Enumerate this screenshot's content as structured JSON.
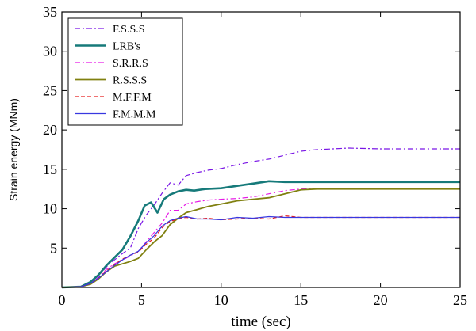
{
  "chart_data": {
    "type": "line",
    "title": "",
    "xlabel": "time (sec)",
    "ylabel": "Strain energy (MNm)",
    "xlim": [
      0,
      25
    ],
    "ylim": [
      0,
      35
    ],
    "xticks": [
      0,
      5,
      10,
      15,
      20,
      25
    ],
    "yticks": [
      5,
      10,
      15,
      20,
      25,
      30,
      35
    ],
    "grid": false,
    "legend_position": "top-left",
    "series": [
      {
        "name": "F.S.S.S",
        "color": "#7a16e6",
        "style": "dashdot",
        "width": 1.2,
        "points": [
          [
            0,
            0
          ],
          [
            1.2,
            0.1
          ],
          [
            1.8,
            0.6
          ],
          [
            2.3,
            1.5
          ],
          [
            2.8,
            2.6
          ],
          [
            3.3,
            3.5
          ],
          [
            3.8,
            4.3
          ],
          [
            4.3,
            5.0
          ],
          [
            4.8,
            7.5
          ],
          [
            5.3,
            9.2
          ],
          [
            5.8,
            10.5
          ],
          [
            6.3,
            12.0
          ],
          [
            6.8,
            13.3
          ],
          [
            7.3,
            13.0
          ],
          [
            7.8,
            14.2
          ],
          [
            8.5,
            14.6
          ],
          [
            9.2,
            14.9
          ],
          [
            10,
            15.1
          ],
          [
            11,
            15.6
          ],
          [
            12,
            16.0
          ],
          [
            13,
            16.3
          ],
          [
            14,
            16.8
          ],
          [
            15,
            17.3
          ],
          [
            16,
            17.5
          ],
          [
            17,
            17.6
          ],
          [
            18,
            17.7
          ],
          [
            20,
            17.6
          ],
          [
            22,
            17.6
          ],
          [
            25,
            17.6
          ]
        ]
      },
      {
        "name": "LRB's",
        "color": "#167a7a",
        "style": "solid",
        "width": 2.6,
        "points": [
          [
            0,
            0
          ],
          [
            1.2,
            0.1
          ],
          [
            1.8,
            0.7
          ],
          [
            2.3,
            1.6
          ],
          [
            2.8,
            2.8
          ],
          [
            3.3,
            3.8
          ],
          [
            3.8,
            4.8
          ],
          [
            4.3,
            6.5
          ],
          [
            4.8,
            8.5
          ],
          [
            5.2,
            10.4
          ],
          [
            5.6,
            10.8
          ],
          [
            6.0,
            9.5
          ],
          [
            6.4,
            11.2
          ],
          [
            6.8,
            11.8
          ],
          [
            7.3,
            12.2
          ],
          [
            7.8,
            12.4
          ],
          [
            8.3,
            12.3
          ],
          [
            9,
            12.5
          ],
          [
            10,
            12.6
          ],
          [
            11,
            12.9
          ],
          [
            12,
            13.2
          ],
          [
            13,
            13.5
          ],
          [
            14,
            13.4
          ],
          [
            15,
            13.4
          ],
          [
            17,
            13.4
          ],
          [
            20,
            13.4
          ],
          [
            25,
            13.4
          ]
        ]
      },
      {
        "name": "S.R.R.S",
        "color": "#e619e6",
        "style": "dashdot",
        "width": 1.2,
        "points": [
          [
            0,
            0
          ],
          [
            1.2,
            0.1
          ],
          [
            1.8,
            0.5
          ],
          [
            2.3,
            1.3
          ],
          [
            2.8,
            2.3
          ],
          [
            3.3,
            3.0
          ],
          [
            3.8,
            3.5
          ],
          [
            4.3,
            4.0
          ],
          [
            4.8,
            4.6
          ],
          [
            5.3,
            5.8
          ],
          [
            5.8,
            7.0
          ],
          [
            6.3,
            8.2
          ],
          [
            6.8,
            9.8
          ],
          [
            7.3,
            9.8
          ],
          [
            7.8,
            10.6
          ],
          [
            8.5,
            10.9
          ],
          [
            9.2,
            11.1
          ],
          [
            10,
            11.2
          ],
          [
            11,
            11.3
          ],
          [
            12,
            11.5
          ],
          [
            13,
            11.9
          ],
          [
            14,
            12.3
          ],
          [
            15,
            12.5
          ],
          [
            17,
            12.6
          ],
          [
            20,
            12.6
          ],
          [
            25,
            12.6
          ]
        ]
      },
      {
        "name": "R.S.S.S",
        "color": "#808010",
        "style": "solid",
        "width": 1.8,
        "points": [
          [
            0,
            0
          ],
          [
            1.2,
            0.1
          ],
          [
            1.8,
            0.4
          ],
          [
            2.3,
            1.1
          ],
          [
            2.8,
            2.0
          ],
          [
            3.3,
            2.7
          ],
          [
            3.8,
            3.0
          ],
          [
            4.3,
            3.3
          ],
          [
            4.8,
            3.7
          ],
          [
            5.3,
            4.8
          ],
          [
            5.8,
            5.8
          ],
          [
            6.3,
            6.6
          ],
          [
            6.8,
            8.0
          ],
          [
            7.3,
            8.8
          ],
          [
            7.8,
            9.5
          ],
          [
            8.5,
            9.9
          ],
          [
            9.2,
            10.3
          ],
          [
            10,
            10.6
          ],
          [
            11,
            11.0
          ],
          [
            12,
            11.2
          ],
          [
            13,
            11.4
          ],
          [
            14,
            11.9
          ],
          [
            15,
            12.4
          ],
          [
            16,
            12.5
          ],
          [
            17,
            12.5
          ],
          [
            20,
            12.5
          ],
          [
            25,
            12.5
          ]
        ]
      },
      {
        "name": "M.F.F.M",
        "color": "#e81e1e",
        "style": "dashed",
        "width": 1.2,
        "points": [
          [
            0,
            0
          ],
          [
            1.2,
            0.1
          ],
          [
            1.8,
            0.5
          ],
          [
            2.3,
            1.2
          ],
          [
            2.8,
            2.1
          ],
          [
            3.3,
            2.9
          ],
          [
            3.8,
            3.6
          ],
          [
            4.3,
            4.1
          ],
          [
            4.8,
            4.5
          ],
          [
            5.3,
            5.5
          ],
          [
            5.8,
            6.3
          ],
          [
            6.3,
            7.6
          ],
          [
            6.8,
            8.4
          ],
          [
            7.3,
            8.7
          ],
          [
            7.8,
            8.9
          ],
          [
            8.5,
            8.7
          ],
          [
            9.2,
            8.8
          ],
          [
            10,
            8.6
          ],
          [
            11,
            8.7
          ],
          [
            12,
            8.8
          ],
          [
            13,
            8.7
          ],
          [
            14,
            9.1
          ],
          [
            15,
            8.9
          ],
          [
            17,
            8.9
          ],
          [
            20,
            8.9
          ],
          [
            25,
            8.9
          ]
        ]
      },
      {
        "name": "F.M.M.M",
        "color": "#3838e0",
        "style": "solid",
        "width": 1.2,
        "points": [
          [
            0,
            0
          ],
          [
            1.2,
            0.1
          ],
          [
            1.8,
            0.5
          ],
          [
            2.3,
            1.2
          ],
          [
            2.8,
            2.0
          ],
          [
            3.3,
            2.8
          ],
          [
            3.8,
            3.5
          ],
          [
            4.3,
            4.1
          ],
          [
            4.8,
            4.6
          ],
          [
            5.3,
            5.7
          ],
          [
            5.8,
            6.6
          ],
          [
            6.3,
            7.8
          ],
          [
            6.8,
            8.5
          ],
          [
            7.3,
            8.8
          ],
          [
            7.8,
            9.0
          ],
          [
            8.5,
            8.7
          ],
          [
            9.2,
            8.7
          ],
          [
            10,
            8.6
          ],
          [
            11,
            8.9
          ],
          [
            12,
            8.8
          ],
          [
            13,
            9.0
          ],
          [
            14,
            8.9
          ],
          [
            15,
            8.9
          ],
          [
            17,
            8.9
          ],
          [
            20,
            8.9
          ],
          [
            25,
            8.9
          ]
        ]
      }
    ]
  }
}
